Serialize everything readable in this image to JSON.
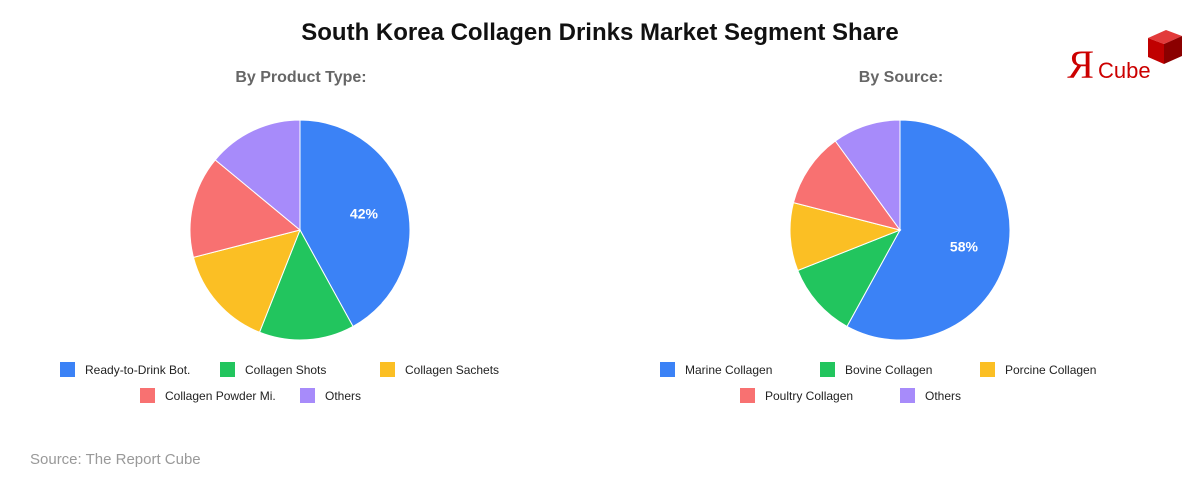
{
  "title": "South Korea Collagen Drinks Market Segment Share",
  "logo_text": "RCube",
  "source": "Source: The Report Cube",
  "chart_data": [
    {
      "type": "pie",
      "title": "By Product Type:",
      "categories": [
        "Ready-to-Drink Bot.",
        "Collagen Shots",
        "Collagen Sachets",
        "Collagen Powder Mi.",
        "Others"
      ],
      "values": [
        42,
        14,
        15,
        15,
        14
      ],
      "colors": [
        "#3b82f6",
        "#22c55e",
        "#fbbf24",
        "#f87171",
        "#a78bfa"
      ],
      "data_labels": [
        "42%",
        "",
        "",
        "",
        ""
      ],
      "legend": "bottom"
    },
    {
      "type": "pie",
      "title": "By Source:",
      "categories": [
        "Marine Collagen",
        "Bovine Collagen",
        "Porcine Collagen",
        "Poultry Collagen",
        "Others"
      ],
      "values": [
        58,
        11,
        10,
        11,
        10
      ],
      "colors": [
        "#3b82f6",
        "#22c55e",
        "#fbbf24",
        "#f87171",
        "#a78bfa"
      ],
      "data_labels": [
        "58%",
        "",
        "",
        "",
        ""
      ],
      "legend": "bottom"
    }
  ]
}
